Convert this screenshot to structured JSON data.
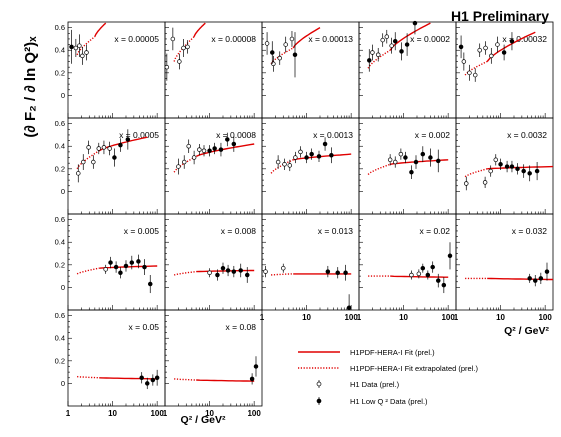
{
  "title": "H1 Preliminary",
  "ylabel": "(∂ F₂ / ∂ ln Q²)ₓ",
  "xlabel": "Q² / GeV²",
  "legend": {
    "fit": "H1PDF-HERA-I Fit (prel.)",
    "extrap": "H1PDF-HERA-I Fit extrapolated (prel.)",
    "data": "H1 Data (prel.)",
    "lowq2": "H1 Low Q ² Data (prel.)"
  },
  "colors": {
    "fit": "#e00000",
    "data": "#000000"
  },
  "chart_data": {
    "type": "scatter",
    "x_scale": "log",
    "xlim": [
      1,
      150
    ],
    "ylim": [
      -0.2,
      0.65
    ],
    "yticks": [
      "0",
      "0.2",
      "0.4",
      "0.6"
    ],
    "xticks": [
      "1",
      "10",
      "100"
    ],
    "panels": [
      {
        "label": "x = 0.00005",
        "fit": [
          [
            4,
            0.52
          ],
          [
            7,
            0.64
          ]
        ],
        "extrap": [
          [
            1.6,
            0.36
          ],
          [
            4,
            0.52
          ]
        ],
        "open": [
          [
            1.5,
            0.42,
            0.08
          ],
          [
            1.8,
            0.44,
            0.1
          ],
          [
            2.1,
            0.35,
            0.08
          ],
          [
            2.6,
            0.38,
            0.07
          ]
        ],
        "closed": [
          [
            1.2,
            0.43,
            0.15
          ]
        ]
      },
      {
        "label": "x = 0.00008",
        "fit": [
          [
            4.5,
            0.52
          ],
          [
            8,
            0.64
          ]
        ],
        "extrap": [
          [
            1.6,
            0.3
          ],
          [
            4.5,
            0.52
          ]
        ],
        "open": [
          [
            1.1,
            0.25,
            0.12
          ],
          [
            1.5,
            0.5,
            0.1
          ],
          [
            2.1,
            0.3,
            0.07
          ],
          [
            2.6,
            0.42,
            0.08
          ],
          [
            3.2,
            0.43,
            0.06
          ]
        ],
        "closed": []
      },
      {
        "label": "x = 0.00013",
        "fit": [
          [
            5,
            0.42
          ],
          [
            20,
            0.6
          ]
        ],
        "extrap": [
          [
            1.6,
            0.28
          ],
          [
            5,
            0.42
          ]
        ],
        "open": [
          [
            1.3,
            0.46,
            0.1
          ],
          [
            1.8,
            0.28,
            0.07
          ],
          [
            2.5,
            0.33,
            0.06
          ],
          [
            3.4,
            0.45,
            0.07
          ],
          [
            4.7,
            0.5,
            0.07
          ]
        ],
        "closed": [
          [
            1.7,
            0.38,
            0.1
          ],
          [
            5.5,
            0.36,
            0.2
          ]
        ]
      },
      {
        "label": "x = 0.0002",
        "fit": [
          [
            5,
            0.4
          ],
          [
            40,
            0.64
          ]
        ],
        "extrap": [
          [
            1.6,
            0.24
          ],
          [
            5,
            0.4
          ]
        ],
        "open": [
          [
            2,
            0.38,
            0.07
          ],
          [
            2.7,
            0.36,
            0.06
          ],
          [
            3.4,
            0.49,
            0.06
          ],
          [
            4.2,
            0.52,
            0.06
          ],
          [
            5.4,
            0.44,
            0.07
          ]
        ],
        "closed": [
          [
            1.7,
            0.31,
            0.1
          ],
          [
            6.5,
            0.48,
            0.08
          ],
          [
            9,
            0.39,
            0.08
          ],
          [
            12,
            0.45,
            0.1
          ],
          [
            18,
            0.64,
            0.1
          ]
        ]
      },
      {
        "label": "x = 0.00032",
        "fit": [
          [
            5,
            0.3
          ],
          [
            60,
            0.56
          ]
        ],
        "extrap": [
          [
            1.6,
            0.18
          ],
          [
            5,
            0.3
          ]
        ],
        "open": [
          [
            1.5,
            0.3,
            0.08
          ],
          [
            2,
            0.2,
            0.07
          ],
          [
            2.7,
            0.18,
            0.06
          ],
          [
            3.4,
            0.4,
            0.06
          ],
          [
            4.6,
            0.42,
            0.06
          ],
          [
            6.2,
            0.35,
            0.07
          ],
          [
            8.5,
            0.45,
            0.07
          ]
        ],
        "closed": [
          [
            1.3,
            0.43,
            0.1
          ],
          [
            12,
            0.38,
            0.07
          ],
          [
            18,
            0.48,
            0.08
          ]
        ]
      },
      {
        "label": "x = 0.0005",
        "fit": [
          [
            5,
            0.36
          ],
          [
            60,
            0.48
          ]
        ],
        "extrap": [
          [
            1.6,
            0.2
          ],
          [
            5,
            0.36
          ]
        ],
        "open": [
          [
            1.7,
            0.16,
            0.08
          ],
          [
            2.2,
            0.26,
            0.07
          ],
          [
            2.9,
            0.39,
            0.06
          ],
          [
            3.7,
            0.26,
            0.06
          ],
          [
            4.9,
            0.38,
            0.05
          ],
          [
            6.4,
            0.39,
            0.06
          ],
          [
            8.6,
            0.38,
            0.06
          ]
        ],
        "closed": [
          [
            11,
            0.3,
            0.08
          ],
          [
            15,
            0.41,
            0.06
          ],
          [
            22,
            0.46,
            0.09
          ]
        ]
      },
      {
        "label": "x = 0.0008",
        "fit": [
          [
            5,
            0.31
          ],
          [
            100,
            0.42
          ]
        ],
        "extrap": [
          [
            1.6,
            0.17
          ],
          [
            5,
            0.31
          ]
        ],
        "open": [
          [
            2,
            0.22,
            0.07
          ],
          [
            2.7,
            0.26,
            0.06
          ],
          [
            3.4,
            0.4,
            0.06
          ],
          [
            4.5,
            0.3,
            0.06
          ],
          [
            5.9,
            0.37,
            0.05
          ],
          [
            7.5,
            0.36,
            0.05
          ]
        ],
        "closed": [
          [
            10,
            0.36,
            0.05
          ],
          [
            13,
            0.38,
            0.05
          ],
          [
            18,
            0.37,
            0.06
          ],
          [
            25,
            0.46,
            0.06
          ],
          [
            35,
            0.42,
            0.07
          ]
        ]
      },
      {
        "label": "x = 0.0013",
        "fit": [
          [
            5,
            0.28
          ],
          [
            100,
            0.33
          ]
        ],
        "extrap": [
          [
            1.6,
            0.16
          ],
          [
            5,
            0.28
          ]
        ],
        "open": [
          [
            2.3,
            0.26,
            0.06
          ],
          [
            3.2,
            0.24,
            0.05
          ],
          [
            4.2,
            0.23,
            0.05
          ],
          [
            5.6,
            0.3,
            0.05
          ],
          [
            7.3,
            0.35,
            0.05
          ]
        ],
        "closed": [
          [
            10,
            0.3,
            0.05
          ],
          [
            13,
            0.33,
            0.05
          ],
          [
            19,
            0.31,
            0.05
          ],
          [
            26,
            0.42,
            0.06
          ],
          [
            36,
            0.32,
            0.07
          ]
        ]
      },
      {
        "label": "x = 0.002",
        "fit": [
          [
            5,
            0.24
          ],
          [
            100,
            0.28
          ]
        ],
        "extrap": [
          [
            1.6,
            0.15
          ],
          [
            5,
            0.24
          ]
        ],
        "open": [
          [
            5,
            0.28,
            0.05
          ],
          [
            6.5,
            0.26,
            0.05
          ],
          [
            8.7,
            0.33,
            0.05
          ]
        ],
        "closed": [
          [
            11,
            0.3,
            0.05
          ],
          [
            15,
            0.17,
            0.06
          ],
          [
            19,
            0.26,
            0.06
          ],
          [
            27,
            0.33,
            0.07
          ],
          [
            40,
            0.3,
            0.08
          ],
          [
            60,
            0.27,
            0.1
          ]
        ]
      },
      {
        "label": "x = 0.0032",
        "fit": [
          [
            5,
            0.2
          ],
          [
            150,
            0.22
          ]
        ],
        "extrap": [
          [
            1.6,
            0.13
          ],
          [
            5,
            0.2
          ]
        ],
        "open": [
          [
            1.7,
            0.07,
            0.06
          ],
          [
            4.5,
            0.08,
            0.05
          ],
          [
            6,
            0.18,
            0.05
          ],
          [
            7.8,
            0.28,
            0.05
          ]
        ],
        "closed": [
          [
            10,
            0.24,
            0.05
          ],
          [
            14,
            0.22,
            0.05
          ],
          [
            18,
            0.22,
            0.05
          ],
          [
            24,
            0.2,
            0.05
          ],
          [
            33,
            0.18,
            0.06
          ],
          [
            45,
            0.16,
            0.07
          ],
          [
            66,
            0.18,
            0.08
          ]
        ]
      },
      {
        "label": "x = 0.005",
        "fit": [
          [
            5,
            0.17
          ],
          [
            100,
            0.19
          ]
        ],
        "extrap": [
          [
            1.6,
            0.12
          ],
          [
            5,
            0.17
          ]
        ],
        "open": [
          [
            7,
            0.16,
            0.04
          ]
        ],
        "closed": [
          [
            9,
            0.22,
            0.05
          ],
          [
            12,
            0.18,
            0.05
          ],
          [
            15,
            0.13,
            0.05
          ],
          [
            20,
            0.19,
            0.05
          ],
          [
            27,
            0.22,
            0.06
          ],
          [
            38,
            0.23,
            0.06
          ],
          [
            52,
            0.18,
            0.07
          ],
          [
            70,
            0.03,
            0.08
          ]
        ]
      },
      {
        "label": "x = 0.008",
        "fit": [
          [
            5,
            0.14
          ],
          [
            100,
            0.15
          ]
        ],
        "extrap": [
          [
            1.6,
            0.11
          ],
          [
            5,
            0.14
          ]
        ],
        "open": [
          [
            10,
            0.13,
            0.04
          ]
        ],
        "closed": [
          [
            15,
            0.11,
            0.05
          ],
          [
            20,
            0.17,
            0.05
          ],
          [
            26,
            0.15,
            0.05
          ],
          [
            35,
            0.14,
            0.05
          ],
          [
            50,
            0.15,
            0.06
          ],
          [
            70,
            0.11,
            0.07
          ]
        ]
      },
      {
        "label": "x = 0.013",
        "fit": [
          [
            5,
            0.12
          ],
          [
            100,
            0.12
          ]
        ],
        "extrap": [
          [
            1.6,
            0.11
          ],
          [
            5,
            0.12
          ]
        ],
        "open": [
          [
            1.2,
            0.14,
            0.05
          ],
          [
            3,
            0.17,
            0.04
          ]
        ],
        "closed": [
          [
            30,
            0.14,
            0.05
          ],
          [
            50,
            0.13,
            0.05
          ],
          [
            75,
            0.13,
            0.07
          ],
          [
            90,
            -0.18,
            0.12
          ]
        ]
      },
      {
        "label": "x = 0.02",
        "fit": [
          [
            5,
            0.1
          ],
          [
            100,
            0.09
          ]
        ],
        "extrap": [
          [
            1.6,
            0.1
          ],
          [
            5,
            0.1
          ]
        ],
        "open": [
          [
            15,
            0.11,
            0.04
          ],
          [
            22,
            0.12,
            0.04
          ]
        ],
        "closed": [
          [
            27,
            0.17,
            0.04
          ],
          [
            35,
            0.11,
            0.04
          ],
          [
            45,
            0.18,
            0.05
          ],
          [
            60,
            0.06,
            0.06
          ],
          [
            80,
            0.02,
            0.07
          ],
          [
            110,
            0.28,
            0.12
          ]
        ]
      },
      {
        "label": "x = 0.032",
        "fit": [
          [
            5,
            0.08
          ],
          [
            150,
            0.07
          ]
        ],
        "extrap": [
          [
            1.6,
            0.08
          ],
          [
            5,
            0.08
          ]
        ],
        "open": [],
        "closed": [
          [
            45,
            0.08,
            0.04
          ],
          [
            60,
            0.06,
            0.05
          ],
          [
            80,
            0.08,
            0.05
          ],
          [
            110,
            0.14,
            0.08
          ]
        ]
      },
      {
        "label": "x = 0.05",
        "fit": [
          [
            5,
            0.05
          ],
          [
            100,
            0.04
          ]
        ],
        "extrap": [
          [
            1.6,
            0.06
          ],
          [
            5,
            0.05
          ]
        ],
        "open": [],
        "closed": [
          [
            45,
            0.05,
            0.05
          ],
          [
            60,
            0,
            0.05
          ],
          [
            80,
            0.03,
            0.05
          ],
          [
            100,
            0.05,
            0.07
          ]
        ]
      },
      {
        "label": "x = 0.08",
        "fit": [
          [
            5,
            0.03
          ],
          [
            100,
            0.02
          ]
        ],
        "extrap": [
          [
            1.6,
            0.04
          ],
          [
            5,
            0.03
          ]
        ],
        "open": [],
        "closed": [
          [
            90,
            0.04,
            0.05
          ],
          [
            110,
            0.15,
            0.09
          ]
        ]
      }
    ]
  }
}
